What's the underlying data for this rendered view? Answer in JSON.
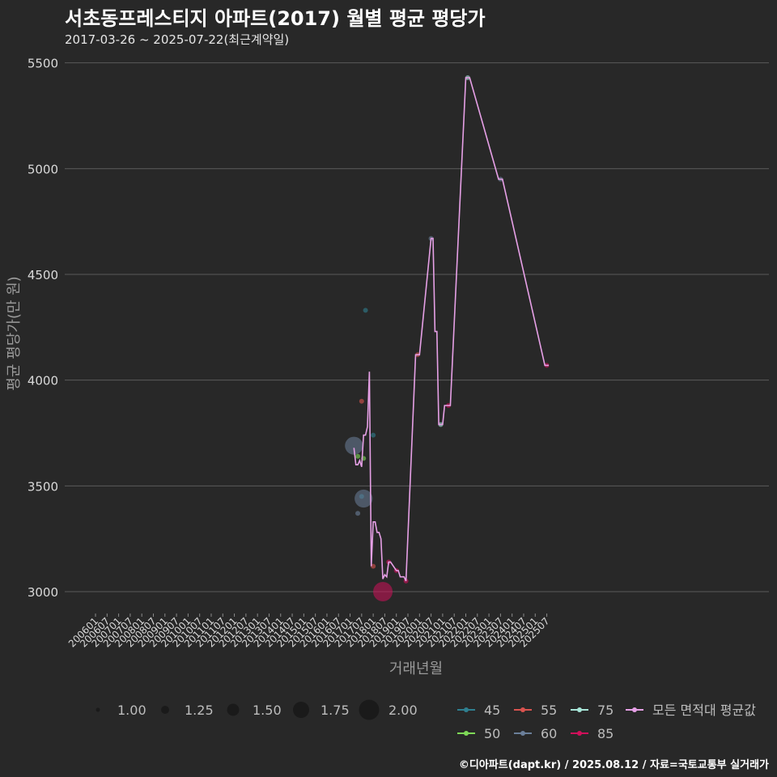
{
  "title": "서초동프레스티지 아파트(2017) 월별 평균 평당가",
  "subtitle": "2017-03-26 ~ 2025-07-22(최근계약일)",
  "caption": "©디아파트(dapt.kr) / 2025.08.12 / 자료=국토교통부 실거래가",
  "colors": {
    "background": "#282828",
    "grid": "#5a5a5a",
    "avg_line": "#e6a0e6",
    "s45": "#2f7f8f",
    "s50": "#7ed957",
    "s55": "#d9534f",
    "s60": "#6b7f9a",
    "s75": "#a8e6d8",
    "s85": "#d0105a"
  },
  "chart_data": {
    "type": "line",
    "xlabel": "거래년월",
    "ylabel": "평균 평당가(만 원)",
    "ylim": [
      2900,
      5600
    ],
    "yticks": [
      3000,
      3500,
      4000,
      4500,
      5000,
      5500
    ],
    "xticks": [
      "200601",
      "200607",
      "200701",
      "200707",
      "200801",
      "200807",
      "200901",
      "200907",
      "201001",
      "201007",
      "201101",
      "201107",
      "201201",
      "201207",
      "201301",
      "201307",
      "201401",
      "201407",
      "201501",
      "201507",
      "201601",
      "201607",
      "201701",
      "201707",
      "201801",
      "201807",
      "201901",
      "201907",
      "202001",
      "202007",
      "202101",
      "202107",
      "202201",
      "202207",
      "202301",
      "202307",
      "202401",
      "202407",
      "202501",
      "202507"
    ],
    "size_legend": {
      "values": [
        "1.00",
        "1.25",
        "1.50",
        "1.75",
        "2.00"
      ]
    },
    "color_legend": [
      {
        "label": "45",
        "color_key": "s45"
      },
      {
        "label": "55",
        "color_key": "s55"
      },
      {
        "label": "75",
        "color_key": "s75"
      },
      {
        "label": "모든 면적대 평균값",
        "color_key": "avg_line"
      },
      {
        "label": "50",
        "color_key": "s50"
      },
      {
        "label": "60",
        "color_key": "s60"
      },
      {
        "label": "85",
        "color_key": "s85"
      }
    ],
    "average_series": {
      "name": "모든 면적대 평균값",
      "points": [
        [
          "2017-03",
          3680
        ],
        [
          "2017-04",
          3600
        ],
        [
          "2017-05",
          3600
        ],
        [
          "2017-06",
          3620
        ],
        [
          "2017-07",
          3590
        ],
        [
          "2017-08",
          3740
        ],
        [
          "2017-09",
          3740
        ],
        [
          "2017-10",
          3780
        ],
        [
          "2017-11",
          4040
        ],
        [
          "2017-12",
          3120
        ],
        [
          "2018-01",
          3330
        ],
        [
          "2018-02",
          3330
        ],
        [
          "2018-03",
          3280
        ],
        [
          "2018-04",
          3280
        ],
        [
          "2018-05",
          3250
        ],
        [
          "2018-06",
          3060
        ],
        [
          "2018-07",
          3080
        ],
        [
          "2018-08",
          3070
        ],
        [
          "2018-09",
          3140
        ],
        [
          "2018-10",
          3140
        ],
        [
          "2019-01",
          3100
        ],
        [
          "2019-02",
          3100
        ],
        [
          "2019-03",
          3070
        ],
        [
          "2019-04",
          3070
        ],
        [
          "2019-05",
          3070
        ],
        [
          "2019-06",
          3050
        ],
        [
          "2019-11",
          4120
        ],
        [
          "2019-12",
          4120
        ],
        [
          "2020-01",
          4120
        ],
        [
          "2020-07",
          4670
        ],
        [
          "2020-08",
          4670
        ],
        [
          "2020-09",
          4230
        ],
        [
          "2020-10",
          4230
        ],
        [
          "2020-11",
          3790
        ],
        [
          "2020-12",
          3790
        ],
        [
          "2021-01",
          3790
        ],
        [
          "2021-02",
          3880
        ],
        [
          "2021-03",
          3880
        ],
        [
          "2021-04",
          3880
        ],
        [
          "2021-05",
          3880
        ],
        [
          "2022-01",
          5430
        ],
        [
          "2022-02",
          5430
        ],
        [
          "2022-03",
          5430
        ],
        [
          "2023-06",
          4950
        ],
        [
          "2023-07",
          4950
        ],
        [
          "2023-08",
          4950
        ],
        [
          "2025-06",
          4070
        ],
        [
          "2025-07",
          4070
        ],
        [
          "2025-08",
          4070
        ]
      ]
    },
    "points": [
      {
        "month": "2017-03",
        "value": 3690,
        "size": 1.9,
        "series": "s60"
      },
      {
        "month": "2017-05",
        "value": 3370,
        "size": 1.0,
        "series": "s60"
      },
      {
        "month": "2017-05",
        "value": 3640,
        "size": 1.0,
        "series": "s50"
      },
      {
        "month": "2017-07",
        "value": 3450,
        "size": 1.0,
        "series": "s45"
      },
      {
        "month": "2017-08",
        "value": 3440,
        "size": 1.9,
        "series": "s60"
      },
      {
        "month": "2017-07",
        "value": 3900,
        "size": 1.0,
        "series": "s55"
      },
      {
        "month": "2017-09",
        "value": 4330,
        "size": 1.0,
        "series": "s45"
      },
      {
        "month": "2017-08",
        "value": 3630,
        "size": 1.0,
        "series": "s50"
      },
      {
        "month": "2018-01",
        "value": 3740,
        "size": 1.0,
        "series": "s45"
      },
      {
        "month": "2018-01",
        "value": 3120,
        "size": 1.0,
        "series": "s55"
      },
      {
        "month": "2018-06",
        "value": 3000,
        "size": 2.0,
        "series": "s85"
      },
      {
        "month": "2018-09",
        "value": 3140,
        "size": 1.0,
        "series": "s85"
      },
      {
        "month": "2019-01",
        "value": 3100,
        "size": 1.0,
        "series": "s85"
      },
      {
        "month": "2019-06",
        "value": 3050,
        "size": 1.0,
        "series": "s85"
      },
      {
        "month": "2019-12",
        "value": 4120,
        "size": 1.0,
        "series": "s55"
      },
      {
        "month": "2020-07",
        "value": 4670,
        "size": 1.0,
        "series": "s60"
      },
      {
        "month": "2020-12",
        "value": 3790,
        "size": 1.0,
        "series": "s75"
      },
      {
        "month": "2021-04",
        "value": 3880,
        "size": 1.0,
        "series": "s85"
      },
      {
        "month": "2022-02",
        "value": 5430,
        "size": 1.0,
        "series": "s75"
      },
      {
        "month": "2023-07",
        "value": 4950,
        "size": 1.0,
        "series": "s60"
      },
      {
        "month": "2025-07",
        "value": 4070,
        "size": 1.0,
        "series": "s85"
      }
    ]
  }
}
